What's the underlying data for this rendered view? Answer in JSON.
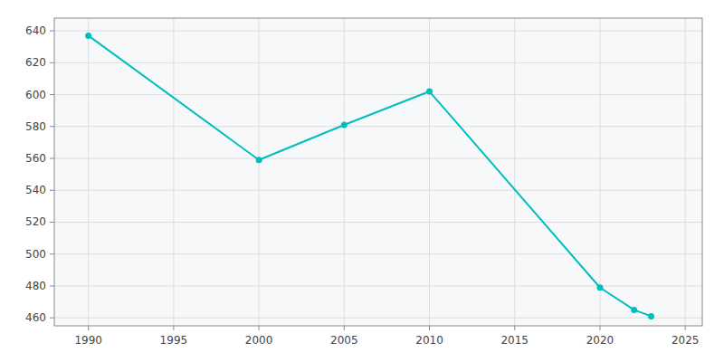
{
  "chart_data": {
    "type": "line",
    "x": [
      1990,
      2000,
      2005,
      2010,
      2020,
      2022,
      2023
    ],
    "values": [
      637,
      559,
      581,
      602,
      479,
      465,
      461
    ],
    "color": "#00BEBE",
    "marker": "circle",
    "xlim": [
      1988,
      2026
    ],
    "ylim": [
      455,
      648
    ],
    "xticks": [
      1990,
      1995,
      2000,
      2005,
      2010,
      2015,
      2020,
      2025
    ],
    "yticks": [
      460,
      480,
      500,
      520,
      540,
      560,
      580,
      600,
      620,
      640
    ],
    "grid": true
  }
}
